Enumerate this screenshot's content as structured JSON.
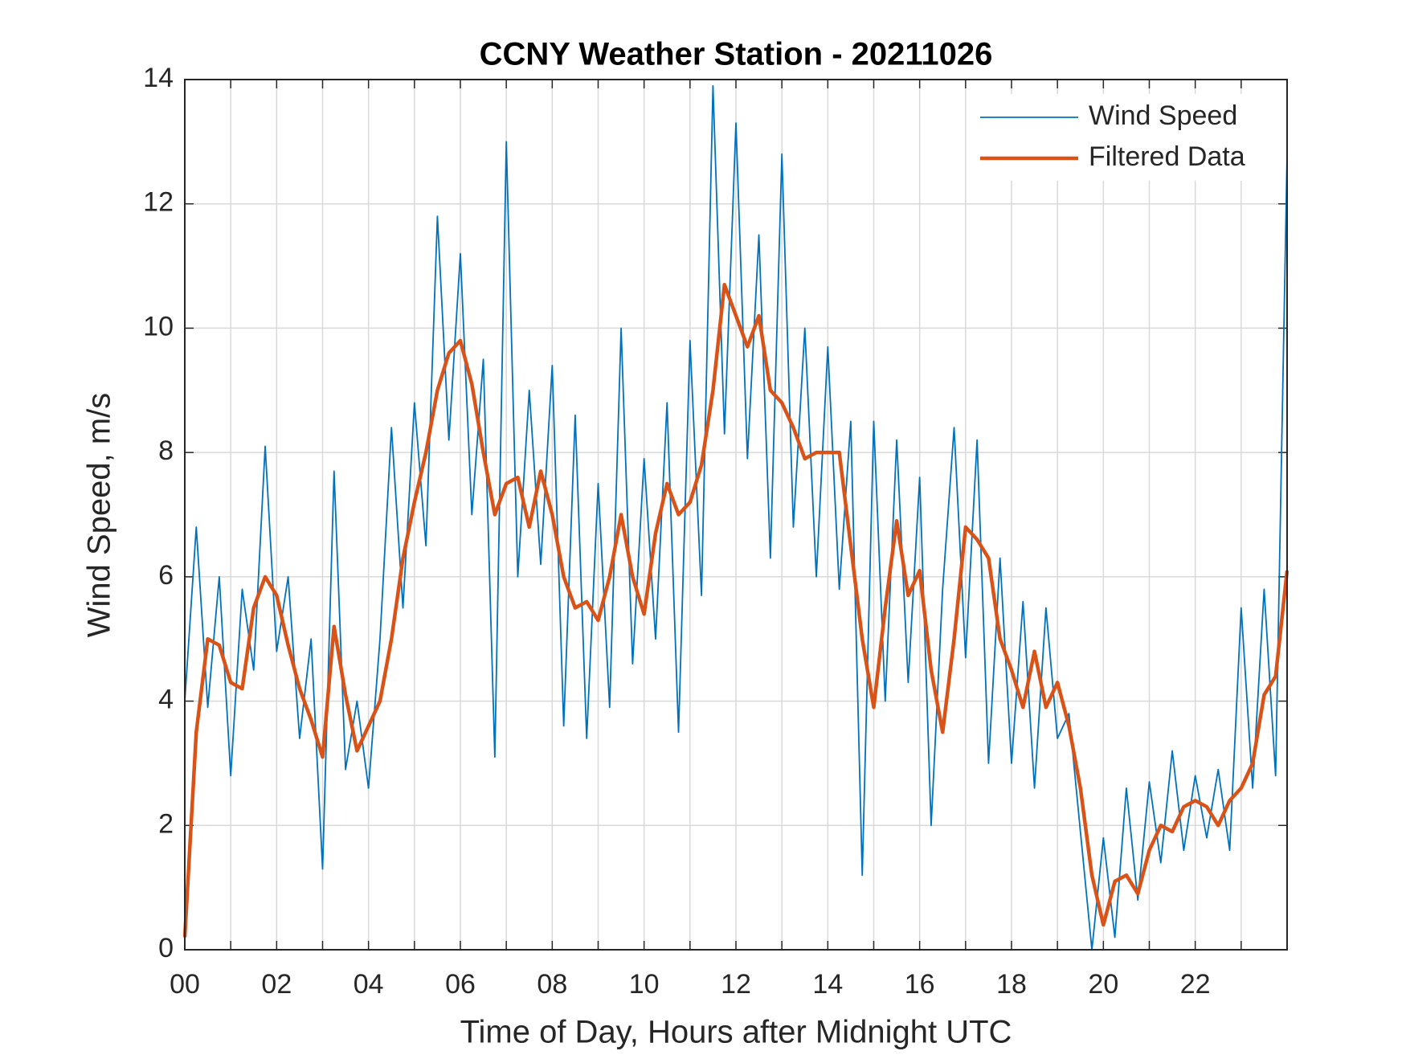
{
  "chart_data": {
    "type": "line",
    "title": "CCNY Weather Station - 20211026",
    "xlabel": "Time of Day, Hours after Midnight UTC",
    "ylabel": "Wind Speed, m/s",
    "x": [
      0,
      0.25,
      0.5,
      0.75,
      1,
      1.25,
      1.5,
      1.75,
      2,
      2.25,
      2.5,
      2.75,
      3,
      3.25,
      3.5,
      3.75,
      4,
      4.25,
      4.5,
      4.75,
      5,
      5.25,
      5.5,
      5.75,
      6,
      6.25,
      6.5,
      6.75,
      7,
      7.25,
      7.5,
      7.75,
      8,
      8.25,
      8.5,
      8.75,
      9,
      9.25,
      9.5,
      9.75,
      10,
      10.25,
      10.5,
      10.75,
      11,
      11.25,
      11.5,
      11.75,
      12,
      12.25,
      12.5,
      12.75,
      13,
      13.25,
      13.5,
      13.75,
      14,
      14.25,
      14.5,
      14.75,
      15,
      15.25,
      15.5,
      15.75,
      16,
      16.25,
      16.5,
      16.75,
      17,
      17.25,
      17.5,
      17.75,
      18,
      18.25,
      18.5,
      18.75,
      19,
      19.25,
      19.5,
      19.75,
      20,
      20.25,
      20.5,
      20.75,
      21,
      21.25,
      21.5,
      21.75,
      22,
      22.25,
      22.5,
      22.75,
      23,
      23.25,
      23.5,
      23.75,
      24
    ],
    "series": [
      {
        "name": "Wind Speed",
        "color": "#0072BD",
        "values": [
          4.0,
          6.8,
          3.9,
          6.0,
          2.8,
          5.8,
          4.5,
          8.1,
          4.8,
          6.0,
          3.4,
          5.0,
          1.3,
          7.7,
          2.9,
          4.0,
          2.6,
          5.0,
          8.4,
          5.5,
          8.8,
          6.5,
          11.8,
          8.2,
          11.2,
          7.0,
          9.5,
          3.1,
          13.0,
          6.0,
          9.0,
          6.2,
          9.4,
          3.6,
          8.6,
          3.4,
          7.5,
          3.9,
          10.0,
          4.6,
          7.9,
          5.0,
          8.8,
          3.5,
          9.8,
          5.7,
          13.9,
          8.3,
          13.3,
          7.9,
          11.5,
          6.3,
          12.8,
          6.8,
          10.0,
          6.0,
          9.7,
          5.8,
          8.5,
          1.2,
          8.5,
          4.0,
          8.2,
          4.3,
          7.6,
          2.0,
          5.8,
          8.4,
          4.7,
          8.2,
          3.0,
          6.3,
          3.0,
          5.6,
          2.6,
          5.5,
          3.4,
          3.8,
          1.9,
          0.0,
          1.8,
          0.2,
          2.6,
          0.8,
          2.7,
          1.4,
          3.2,
          1.6,
          2.8,
          1.8,
          2.9,
          1.6,
          5.5,
          2.6,
          5.8,
          2.8,
          12.8
        ]
      },
      {
        "name": "Filtered Data",
        "color": "#D95319",
        "values": [
          0.2,
          3.5,
          5.0,
          4.9,
          4.3,
          4.2,
          5.5,
          6.0,
          5.7,
          4.9,
          4.2,
          3.7,
          3.1,
          5.2,
          4.1,
          3.2,
          3.6,
          4.0,
          5.0,
          6.3,
          7.2,
          8.0,
          9.0,
          9.6,
          9.8,
          9.1,
          8.0,
          7.0,
          7.5,
          7.6,
          6.8,
          7.7,
          7.0,
          6.0,
          5.5,
          5.6,
          5.3,
          6.0,
          7.0,
          6.0,
          5.4,
          6.7,
          7.5,
          7.0,
          7.2,
          7.8,
          9.0,
          10.7,
          10.2,
          9.7,
          10.2,
          9.0,
          8.8,
          8.4,
          7.9,
          8.0,
          8.0,
          8.0,
          6.5,
          5.0,
          3.9,
          5.5,
          6.9,
          5.7,
          6.1,
          4.5,
          3.5,
          5.0,
          6.8,
          6.6,
          6.3,
          5.0,
          4.5,
          3.9,
          4.8,
          3.9,
          4.3,
          3.6,
          2.6,
          1.2,
          0.4,
          1.1,
          1.2,
          0.9,
          1.6,
          2.0,
          1.9,
          2.3,
          2.4,
          2.3,
          2.0,
          2.4,
          2.6,
          3.0,
          4.1,
          4.4,
          6.1
        ]
      }
    ],
    "xlim": [
      0,
      24
    ],
    "xticks": [
      {
        "value": 0,
        "label": "00"
      },
      {
        "value": 2,
        "label": "02"
      },
      {
        "value": 4,
        "label": "04"
      },
      {
        "value": 6,
        "label": "06"
      },
      {
        "value": 8,
        "label": "08"
      },
      {
        "value": 10,
        "label": "10"
      },
      {
        "value": 12,
        "label": "12"
      },
      {
        "value": 14,
        "label": "14"
      },
      {
        "value": 16,
        "label": "16"
      },
      {
        "value": 18,
        "label": "18"
      },
      {
        "value": 20,
        "label": "20"
      },
      {
        "value": 22,
        "label": "22"
      }
    ],
    "xminorticks": [
      1,
      3,
      5,
      7,
      9,
      11,
      13,
      15,
      17,
      19,
      21,
      23
    ],
    "ylim": [
      0,
      14
    ],
    "yticks": [
      0,
      2,
      4,
      6,
      8,
      10,
      12,
      14
    ],
    "grid": true,
    "legend": "upper-right"
  }
}
